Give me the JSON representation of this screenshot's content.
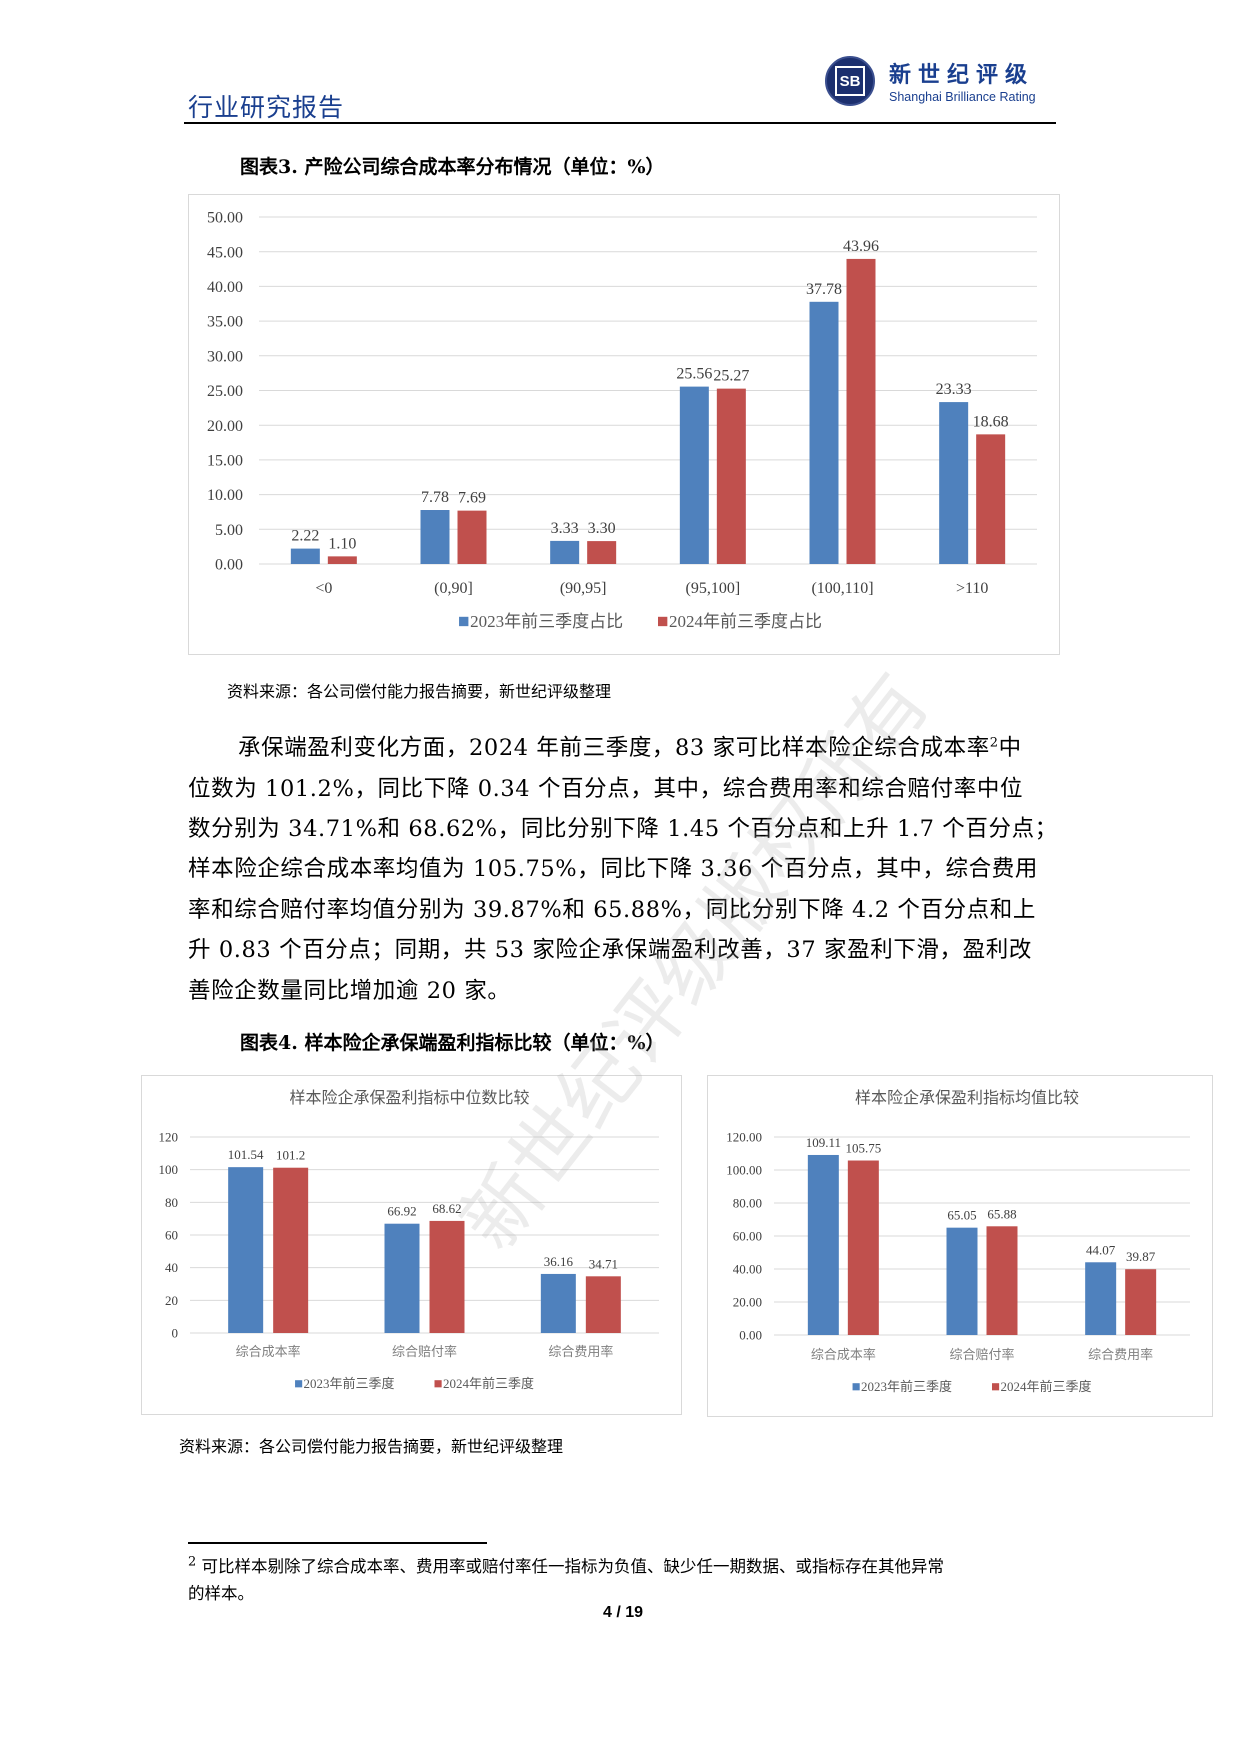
{
  "header": {
    "title": "行业研究报告",
    "brand_cn": "新世纪评级",
    "brand_en": "Shanghai Brilliance Rating",
    "logo_text": "SB"
  },
  "figure3": {
    "title": "图表3.   产险公司综合成本率分布情况（单位：%）",
    "source": "资料来源：各公司偿付能力报告摘要，新世纪评级整理"
  },
  "paragraph": {
    "line0_pre": "承保端盈利变化方面，2024 年前三季度，83 家可比样本险企综合成本率",
    "line0_sup": "2",
    "line0_post": "中",
    "lines": [
      "位数为 101.2%，同比下降 0.34 个百分点，其中，综合费用率和综合赔付率中位",
      "数分别为 34.71%和 68.62%，同比分别下降 1.45 个百分点和上升 1.7 个百分点；",
      "样本险企综合成本率均值为 105.75%，同比下降 3.36 个百分点，其中，综合费用",
      "率和综合赔付率均值分别为 39.87%和 65.88%，同比分别下降 4.2 个百分点和上",
      "升 0.83 个百分点；同期，共 53 家险企承保端盈利改善，37 家盈利下滑，盈利改",
      "善险企数量同比增加逾 20 家。"
    ]
  },
  "figure4": {
    "title": "图表4.   样本险企承保端盈利指标比较（单位：%）",
    "source": "资料来源：各公司偿付能力报告摘要，新世纪评级整理"
  },
  "footnote": {
    "mark": "2",
    "line1": "可比样本剔除了综合成本率、费用率或赔付率任一指标为负值、缺少任一期数据、或指标存在其他异常",
    "line2": "的样本。"
  },
  "page_number": "4 / 19",
  "watermark": "新世纪评级版权所有",
  "colors": {
    "series_2023": "#4F81BD",
    "series_2024": "#C0504D",
    "header_blue": "#1A3F8F",
    "grid": "#D9D9D9"
  },
  "chart_data": [
    {
      "type": "bar",
      "title": "",
      "categories": [
        "<0",
        "(0,90]",
        "(90,95]",
        "(95,100]",
        "(100,110]",
        ">110"
      ],
      "series": [
        {
          "name": "2023年前三季度占比",
          "values": [
            2.22,
            7.78,
            3.33,
            25.56,
            37.78,
            23.33
          ],
          "labels": [
            "2.22",
            "7.78",
            "3.33",
            "25.56",
            "37.78",
            "23.33"
          ]
        },
        {
          "name": "2024年前三季度占比",
          "values": [
            1.1,
            7.69,
            3.3,
            25.27,
            43.96,
            18.68
          ],
          "labels": [
            "1.10",
            "7.69",
            "3.30",
            "25.27",
            "43.96",
            "18.68"
          ]
        }
      ],
      "ylim": [
        0,
        50
      ],
      "yticks": [
        "0.00",
        "5.00",
        "10.00",
        "15.00",
        "20.00",
        "25.00",
        "30.00",
        "35.00",
        "40.00",
        "45.00",
        "50.00"
      ],
      "grid": true,
      "legend": "bottom"
    },
    {
      "type": "bar",
      "title": "样本险企承保盈利指标中位数比较",
      "categories": [
        "综合成本率",
        "综合赔付率",
        "综合费用率"
      ],
      "series": [
        {
          "name": "2023年前三季度",
          "values": [
            101.54,
            66.92,
            36.16
          ],
          "labels": [
            "101.54",
            "66.92",
            "36.16"
          ]
        },
        {
          "name": "2024年前三季度",
          "values": [
            101.2,
            68.62,
            34.71
          ],
          "labels": [
            "101.2",
            "68.62",
            "34.71"
          ]
        }
      ],
      "ylim": [
        0,
        120
      ],
      "yticks": [
        "0",
        "20",
        "40",
        "60",
        "80",
        "100",
        "120"
      ],
      "grid": true,
      "legend": "bottom"
    },
    {
      "type": "bar",
      "title": "样本险企承保盈利指标均值比较",
      "categories": [
        "综合成本率",
        "综合赔付率",
        "综合费用率"
      ],
      "series": [
        {
          "name": "2023年前三季度",
          "values": [
            109.11,
            65.05,
            44.07
          ],
          "labels": [
            "109.11",
            "65.05",
            "44.07"
          ]
        },
        {
          "name": "2024年前三季度",
          "values": [
            105.75,
            65.88,
            39.87
          ],
          "labels": [
            "105.75",
            "65.88",
            "39.87"
          ]
        }
      ],
      "ylim": [
        0,
        120
      ],
      "yticks": [
        "0.00",
        "20.00",
        "40.00",
        "60.00",
        "80.00",
        "100.00",
        "120.00"
      ],
      "grid": true,
      "legend": "bottom"
    }
  ]
}
